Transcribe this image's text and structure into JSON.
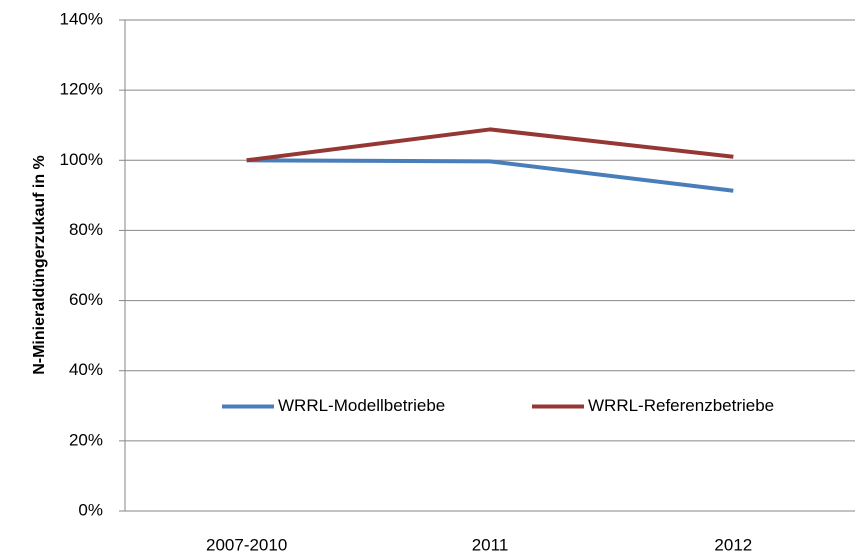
{
  "chart_data": {
    "type": "line",
    "y_label": "N-Minieraldüngerzukauf in %",
    "categories": [
      "2007-2010",
      "2011",
      "2012"
    ],
    "series": [
      {
        "name": "WRRL-Modellbetriebe",
        "color": "#4a7ebb",
        "values": [
          100,
          99.7,
          91.3
        ]
      },
      {
        "name": "WRRL-Referenzbetriebe",
        "color": "#953735",
        "values": [
          100,
          108.8,
          101
        ]
      }
    ],
    "ylim": [
      0,
      140
    ],
    "yticks": [
      {
        "value": 0,
        "label": "0%"
      },
      {
        "value": 20,
        "label": "20%"
      },
      {
        "value": 40,
        "label": "40%"
      },
      {
        "value": 60,
        "label": "60%"
      },
      {
        "value": 80,
        "label": "80%"
      },
      {
        "value": 100,
        "label": "100%"
      },
      {
        "value": 120,
        "label": "120%"
      },
      {
        "value": 140,
        "label": "140%"
      }
    ],
    "grid": true,
    "legend_position": "center"
  }
}
